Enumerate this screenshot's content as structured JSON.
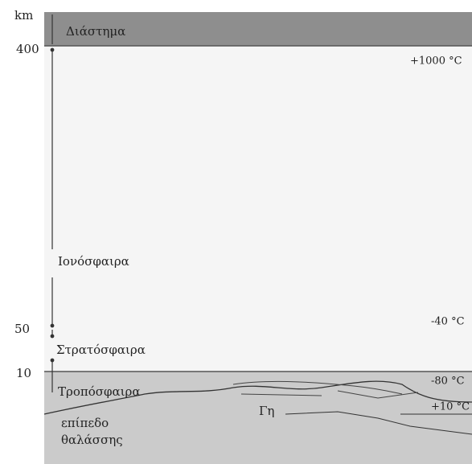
{
  "axis": {
    "unit": "km",
    "ticks": [
      "400",
      "50",
      "10"
    ]
  },
  "layers": [
    "Διάστημα",
    "Ιονόσφαιρα",
    "Στρατόσφαιρα",
    "Τροπόσφαιρα"
  ],
  "temperatures": [
    "+1000 °C",
    "-40 °C",
    "-80 °C",
    "+10 °C"
  ],
  "labels": {
    "earth": "Γη",
    "sea_level": [
      "επίπεδο",
      "θαλάσσης"
    ]
  }
}
